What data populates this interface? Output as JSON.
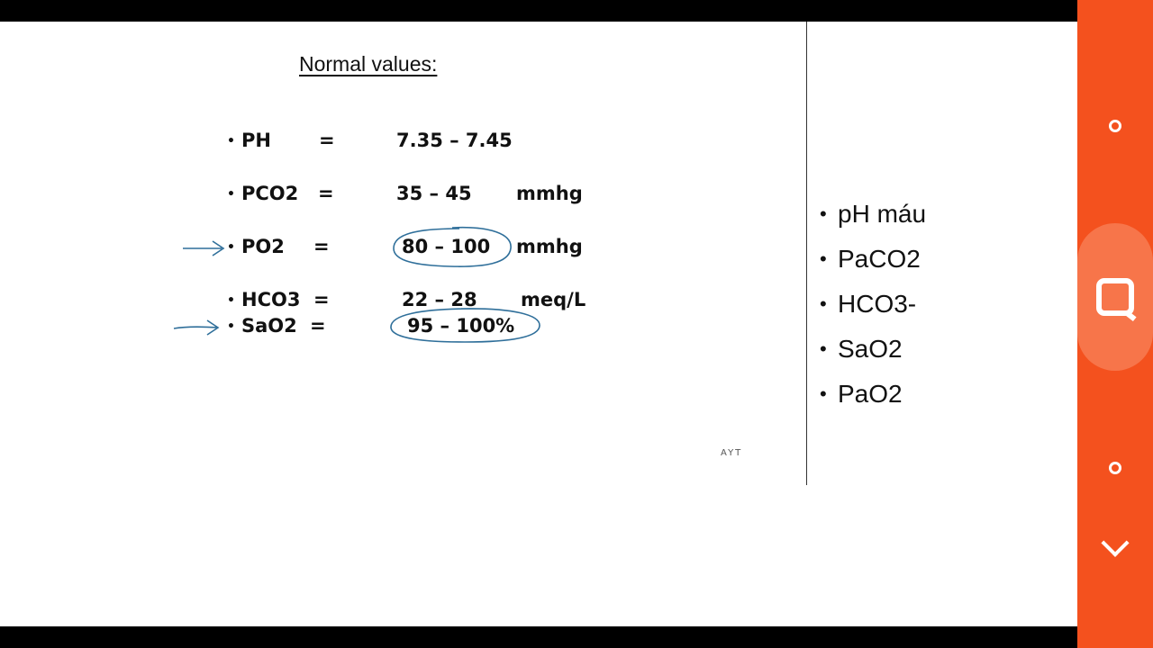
{
  "slide": {
    "title": "Normal values:",
    "rows": [
      {
        "bullet": "•",
        "label": "PH",
        "eq": "=",
        "value": "7.35 – 7.45",
        "unit": ""
      },
      {
        "bullet": "•",
        "label": "PCO2",
        "eq": "=",
        "value": "35 – 45",
        "unit": "mmhg"
      },
      {
        "bullet": "•",
        "label": "PO2",
        "eq": "=",
        "value": "80 – 100",
        "unit": "mmhg"
      },
      {
        "bullet": "•",
        "label": "HCO3",
        "eq": "=",
        "value": "22 – 28",
        "unit": "meq/L"
      },
      {
        "bullet": "•",
        "label": "SaO2",
        "eq": "=",
        "value": "95 – 100%",
        "unit": ""
      }
    ],
    "footer_tag": "AYT",
    "annotation_color": "#2f6f9a"
  },
  "side_list": {
    "bullet": "•",
    "items": [
      "pH máu",
      "PaCO2",
      "HCO3-",
      "SaO2",
      "PaO2"
    ]
  },
  "rail": {
    "color": "#f4511e",
    "buttons": [
      "circle-icon",
      "quiz-icon",
      "circle-icon",
      "chevron-down-icon"
    ]
  }
}
